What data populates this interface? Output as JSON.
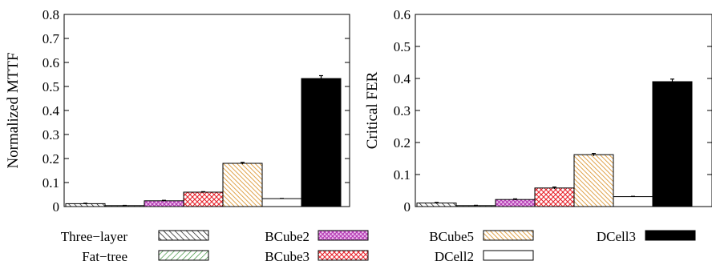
{
  "chart_data": [
    {
      "type": "bar",
      "ylabel": "Normalized MTTF",
      "xlabel": "",
      "ylim": [
        0,
        0.8
      ],
      "yticks": [
        0,
        0.1,
        0.2,
        0.3,
        0.4,
        0.5,
        0.6,
        0.7,
        0.8
      ],
      "ytick_labels": [
        "0",
        "0.1",
        "0.2",
        "0.3",
        "0.4",
        "0.5",
        "0.6",
        "0.7",
        "0.8"
      ],
      "grid": false,
      "categories": [
        "Three-layer",
        "Fat-tree",
        "BCube2",
        "BCube3",
        "BCube5",
        "DCell2",
        "DCell3"
      ],
      "values": [
        0.012,
        0.004,
        0.024,
        0.06,
        0.18,
        0.033,
        0.533
      ],
      "error": [
        0.002,
        0.001,
        0.002,
        0.002,
        0.004,
        0.001,
        0.012
      ]
    },
    {
      "type": "bar",
      "ylabel": "Critical FER",
      "xlabel": "",
      "ylim": [
        0,
        0.6
      ],
      "yticks": [
        0,
        0.1,
        0.2,
        0.3,
        0.4,
        0.5,
        0.6
      ],
      "ytick_labels": [
        "0",
        "0.1",
        "0.2",
        "0.3",
        "0.4",
        "0.5",
        "0.6"
      ],
      "grid": false,
      "categories": [
        "Three-layer",
        "Fat-tree",
        "BCube2",
        "BCube3",
        "BCube5",
        "DCell2",
        "DCell3"
      ],
      "values": [
        0.011,
        0.003,
        0.022,
        0.058,
        0.162,
        0.031,
        0.39
      ],
      "error": [
        0.002,
        0.001,
        0.002,
        0.003,
        0.004,
        0.001,
        0.008
      ]
    }
  ],
  "legend": {
    "placement": "bottom",
    "entries": [
      {
        "label": "Three−layer",
        "pattern": "diag-black"
      },
      {
        "label": "Fat−tree",
        "pattern": "diag-green"
      },
      {
        "label": "BCube2",
        "pattern": "cross-magenta"
      },
      {
        "label": "BCube3",
        "pattern": "cross-red"
      },
      {
        "label": "BCube5",
        "pattern": "diag-orange"
      },
      {
        "label": "DCell2",
        "pattern": "white"
      },
      {
        "label": "DCell3",
        "pattern": "solid-black"
      }
    ]
  },
  "colors": {
    "three_layer": "#000000",
    "fat_tree": "#2e8b2e",
    "bcube2": "#b53fb5",
    "bcube3": "#e8232b",
    "bcube5": "#e0a24a",
    "dcell2": "#ffffff",
    "dcell3": "#000000"
  }
}
